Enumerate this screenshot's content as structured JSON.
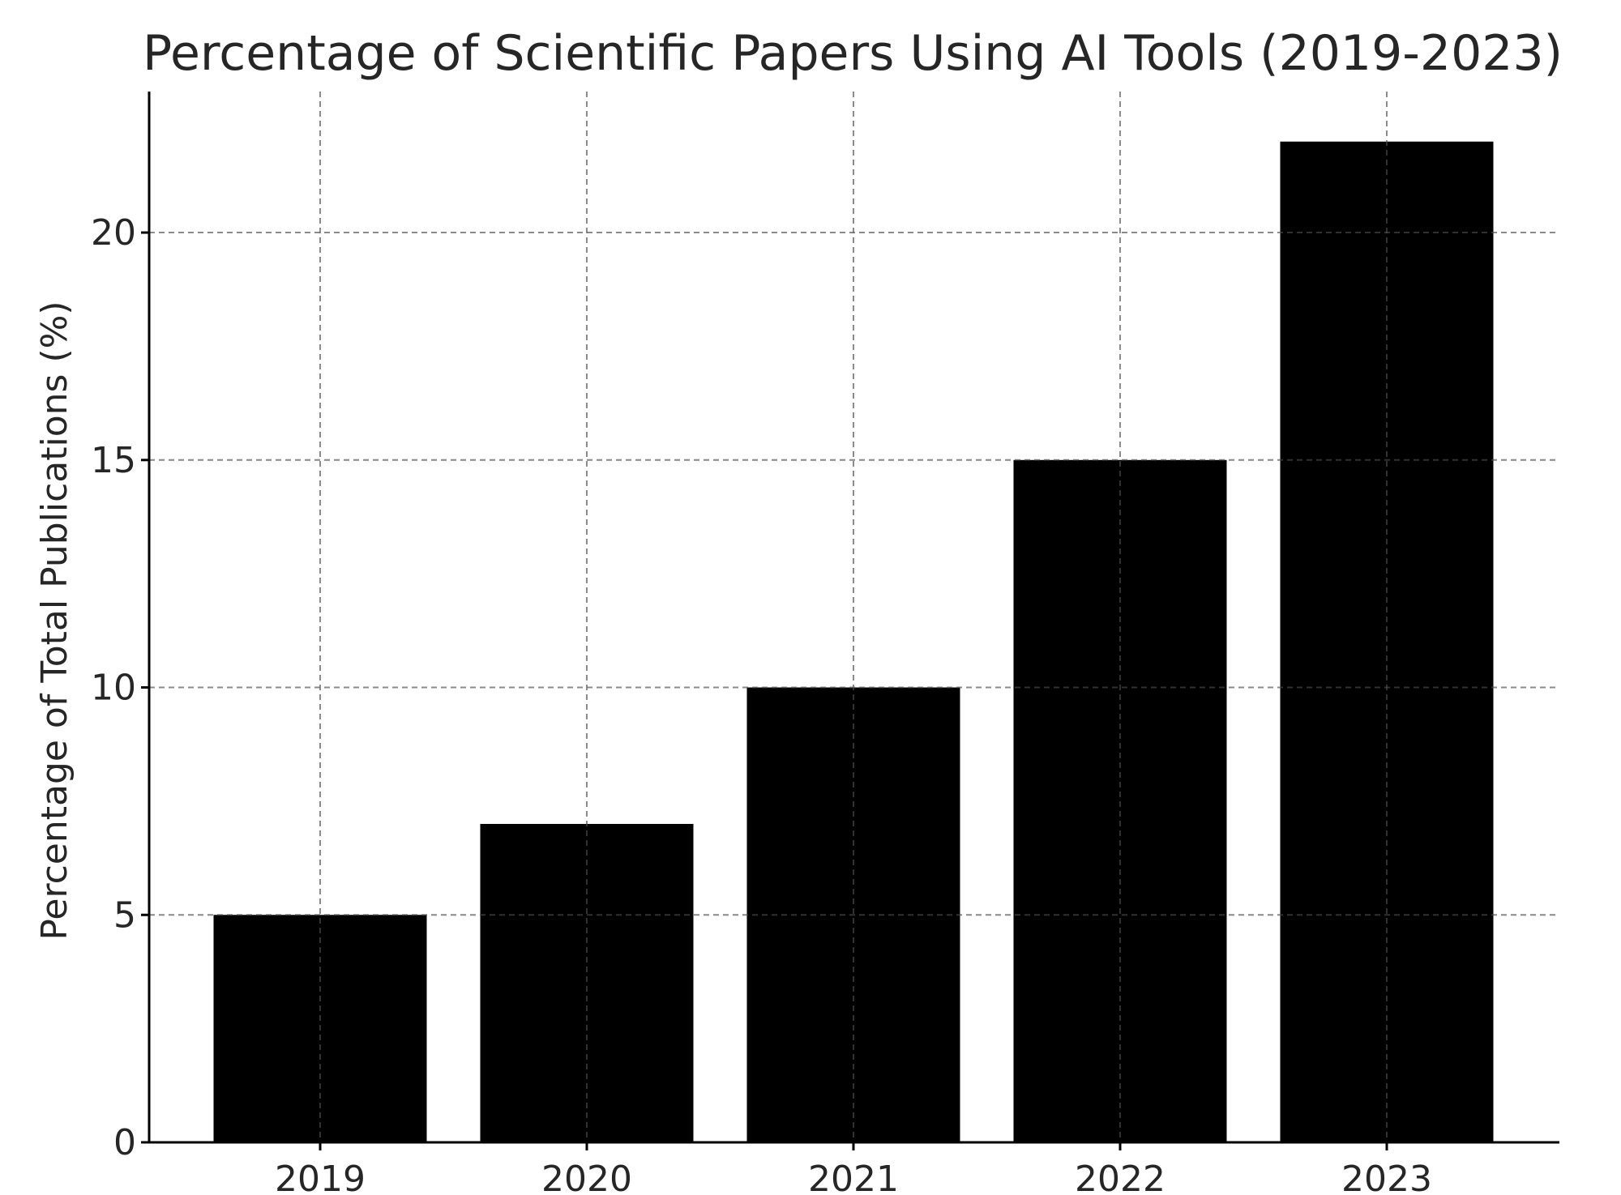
{
  "chart_data": {
    "type": "bar",
    "title": "Percentage of Scientific Papers Using AI Tools (2019-2023)",
    "xlabel": "",
    "ylabel": "Percentage of Total Publications (%)",
    "categories": [
      "2019",
      "2020",
      "2021",
      "2022",
      "2023"
    ],
    "values": [
      5,
      7,
      10,
      15,
      22
    ],
    "ylim": [
      0,
      23.1
    ],
    "yticks": [
      0,
      5,
      10,
      15,
      20
    ],
    "grid": true,
    "colors": {
      "bar": "#000000",
      "grid": "#c8c8c8",
      "axis": "#000000",
      "text": "#262626"
    }
  }
}
